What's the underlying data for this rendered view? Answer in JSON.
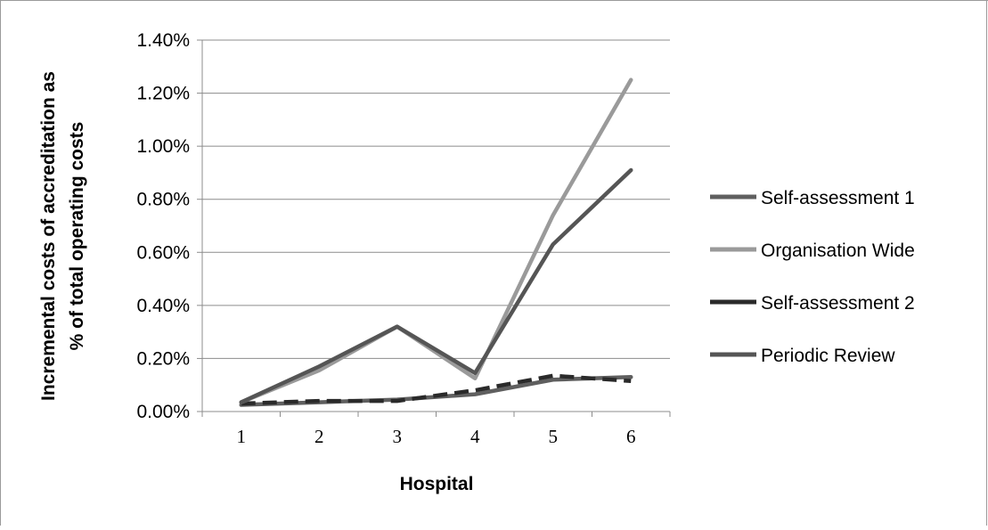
{
  "chart_data": {
    "type": "line",
    "title": "",
    "xlabel": "Hospital",
    "ylabel": "Incremental costs of accreditation as % of total operating costs",
    "ylabel_lines": [
      "Incremental costs of accreditation as",
      "% of total operating costs"
    ],
    "categories": [
      "1",
      "2",
      "3",
      "4",
      "5",
      "6"
    ],
    "ylim": [
      0,
      0.014
    ],
    "y_ticks": [
      0,
      0.002,
      0.004,
      0.006,
      0.008,
      0.01,
      0.012,
      0.014
    ],
    "y_tick_labels": [
      "0.00%",
      "0.20%",
      "0.40%",
      "0.60%",
      "0.80%",
      "1.00%",
      "1.20%",
      "1.40%"
    ],
    "grid": true,
    "legend_position": "right",
    "series": [
      {
        "name": "Self-assessment 1",
        "color": "#5f5f5f",
        "dash": false,
        "values": [
          0.00025,
          0.00035,
          0.00045,
          0.00065,
          0.0012,
          0.0013
        ]
      },
      {
        "name": "Organisation Wide",
        "color": "#9a9a9a",
        "dash": false,
        "values": [
          0.00035,
          0.00155,
          0.0032,
          0.00125,
          0.0074,
          0.0125
        ]
      },
      {
        "name": "Self-assessment 2",
        "color": "#2a2a2a",
        "dash": true,
        "values": [
          0.0003,
          0.0004,
          0.0004,
          0.0008,
          0.00135,
          0.00115
        ]
      },
      {
        "name": "Periodic Review",
        "color": "#555555",
        "dash": false,
        "values": [
          0.00035,
          0.0017,
          0.0032,
          0.00145,
          0.0063,
          0.0091
        ]
      }
    ]
  }
}
